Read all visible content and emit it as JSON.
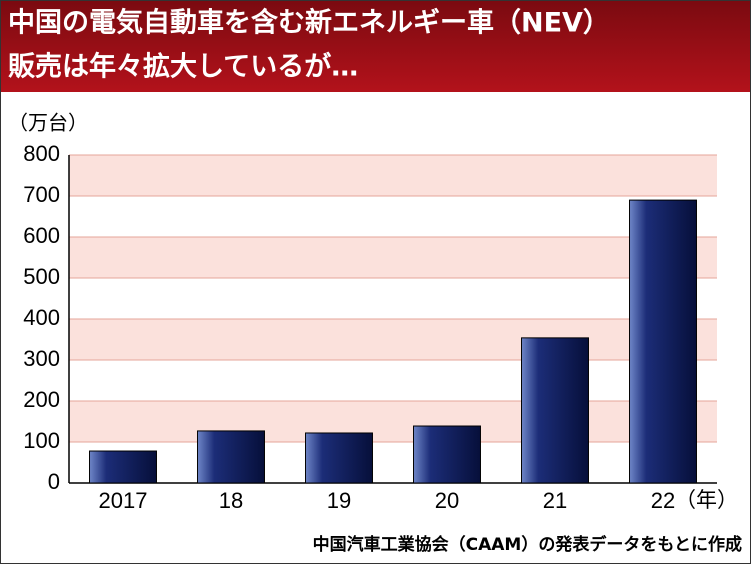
{
  "chart_data": {
    "type": "bar",
    "title": [
      "中国の電気自動車を含む新エネルギー車（NEV）",
      "販売は年々拡大しているが…"
    ],
    "y_label": "（万台）",
    "x_label": "（年）",
    "source": "中国汽車工業協会（CAAM）の発表データをもとに作成",
    "categories": [
      "2017",
      "18",
      "19",
      "20",
      "21",
      "22"
    ],
    "values": [
      78,
      127,
      122,
      139,
      354,
      690
    ],
    "color": "#0d1a5c",
    "ylim": [
      0,
      800
    ],
    "yticks": [
      0,
      100,
      200,
      300,
      400,
      500,
      600,
      700,
      800
    ],
    "grid": true
  }
}
